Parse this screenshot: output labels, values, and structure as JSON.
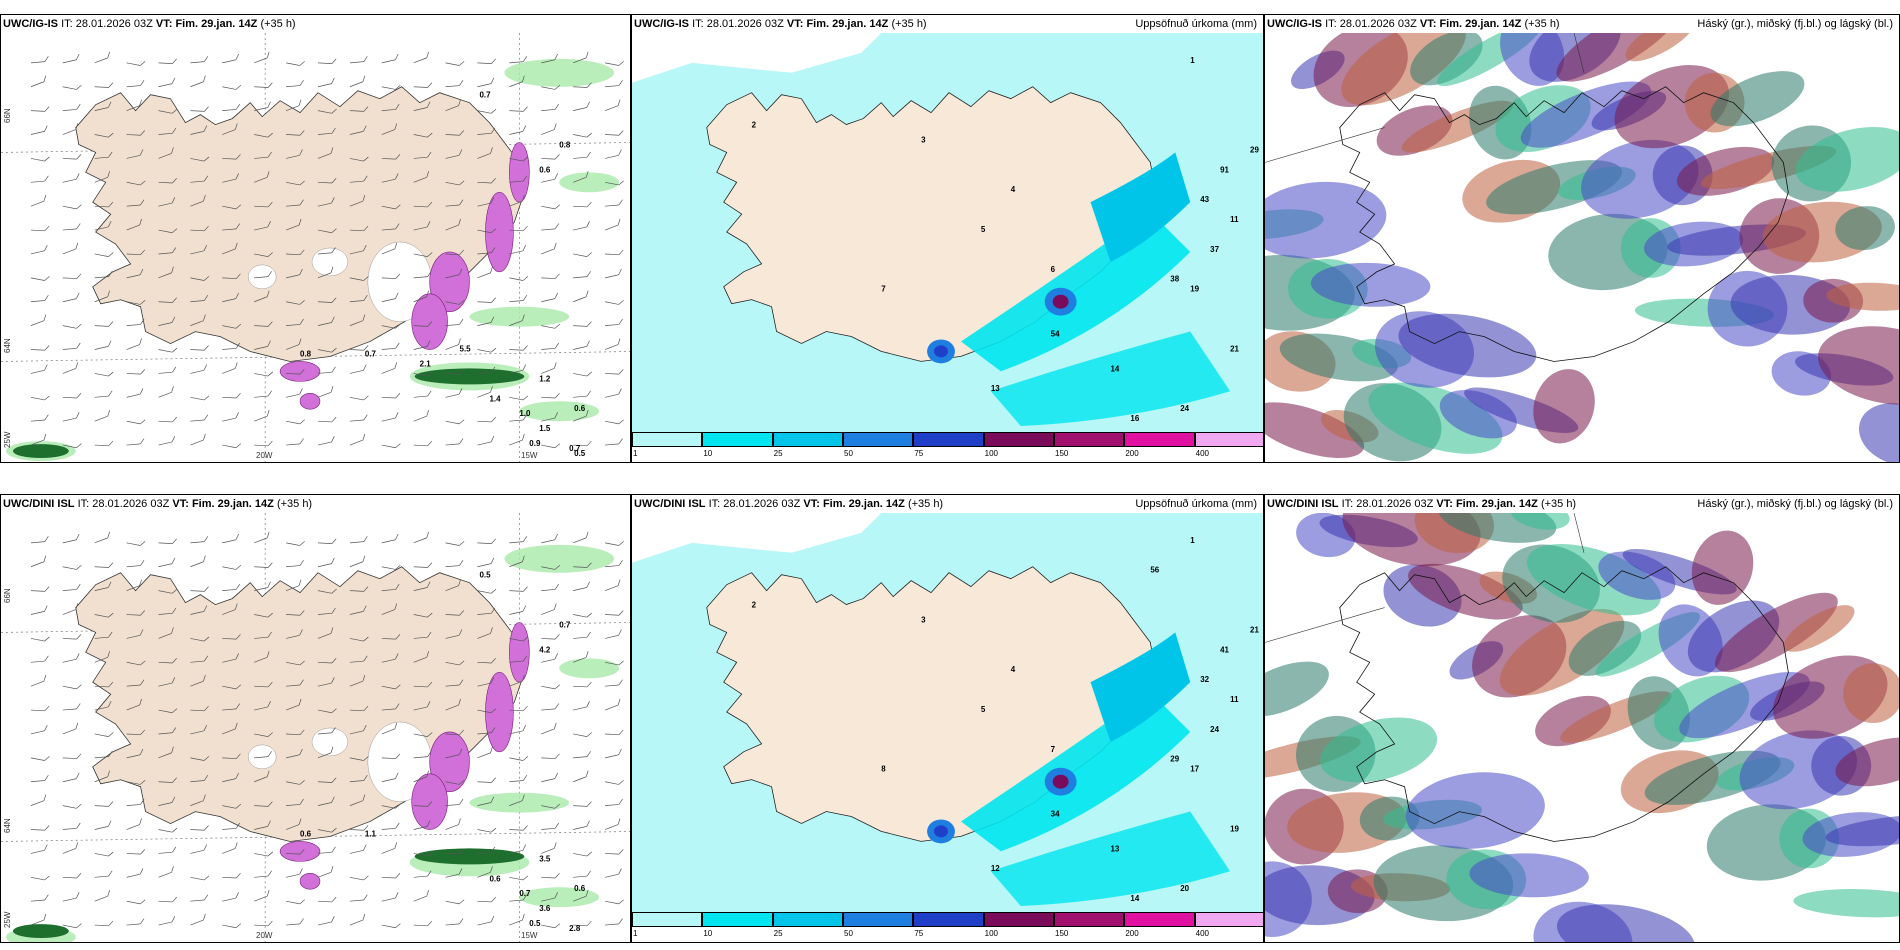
{
  "panels": [
    {
      "model": "UWC/IG-IS",
      "it_label": "IT:",
      "it": "28.01.2026 03Z",
      "vt_label": "VT:",
      "vt": "Fim. 29.jan. 14Z",
      "lead": "(+35 h)",
      "right": ""
    },
    {
      "model": "UWC/IG-IS",
      "it_label": "IT:",
      "it": "28.01.2026 03Z",
      "vt_label": "VT:",
      "vt": "Fim. 29.jan. 14Z",
      "lead": "(+35 h)",
      "right": "Uppsöfnuð úrkoma (mm)"
    },
    {
      "model": "UWC/IG-IS",
      "it_label": "IT:",
      "it": "28.01.2026 03Z",
      "vt_label": "VT:",
      "vt": "Fim. 29.jan. 14Z",
      "lead": "(+35 h)",
      "right": "Háský (gr.), miðský (fj.bl.) og lágský (bl.)"
    },
    {
      "model": "UWC/DINI ISL",
      "it_label": "IT:",
      "it": "28.01.2026 03Z",
      "vt_label": "VT:",
      "vt": "Fim. 29.jan. 14Z",
      "lead": "(+35 h)",
      "right": ""
    },
    {
      "model": "UWC/DINI ISL",
      "it_label": "IT:",
      "it": "28.01.2026 03Z",
      "vt_label": "VT:",
      "vt": "Fim. 29.jan. 14Z",
      "lead": "(+35 h)",
      "right": "Uppsöfnuð úrkoma (mm)"
    },
    {
      "model": "UWC/DINI ISL",
      "it_label": "IT:",
      "it": "28.01.2026 03Z",
      "vt_label": "VT:",
      "vt": "Fim. 29.jan. 14Z",
      "lead": "(+35 h)",
      "right": "Háský (gr.), miðský (fj.bl.) og lágský (bl.)"
    }
  ],
  "axes": {
    "lon_20": "20W",
    "lon_15": "15W",
    "lon_25": "25W",
    "lat_66": "66N",
    "lat_64": "64N"
  },
  "colorbar": {
    "ticks": [
      "1",
      "10",
      "25",
      "50",
      "75",
      "100",
      "150",
      "200",
      "400"
    ],
    "colors": [
      "#b7f7f7",
      "#00e5ee",
      "#00c5e8",
      "#1e7fe0",
      "#1f3fc8",
      "#7a0a5a",
      "#a0106e",
      "#e010a0",
      "#f0a8f0"
    ]
  },
  "snow_labels_top": [
    "0.7",
    "0.8",
    "0.6",
    "0.8",
    "0.7",
    "1.2",
    "1.4",
    "1.0",
    "0.6",
    "1.5",
    "0.9",
    "0.7",
    "0.5",
    "2.1",
    "5.5"
  ],
  "snow_labels_bottom": [
    "0.5",
    "0.7",
    "4.2",
    "0.6",
    "1.1",
    "3.5",
    "0.6",
    "0.7",
    "0.6",
    "3.6",
    "0.5",
    "2.8"
  ],
  "precip_labels_top": [
    "1",
    "2",
    "3",
    "4",
    "5",
    "6",
    "7",
    "11",
    "13",
    "14",
    "16",
    "19",
    "21",
    "24",
    "29",
    "37",
    "38",
    "43",
    "54",
    "91"
  ],
  "precip_labels_bottom": [
    "1",
    "2",
    "3",
    "4",
    "5",
    "7",
    "8",
    "11",
    "12",
    "13",
    "14",
    "17",
    "19",
    "20",
    "21",
    "24",
    "29",
    "32",
    "34",
    "41",
    "56"
  ]
}
